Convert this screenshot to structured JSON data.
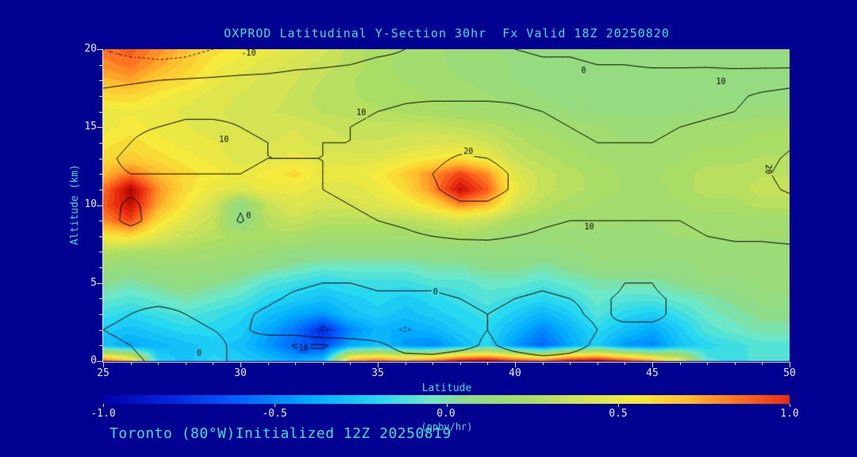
{
  "title": "OXPROD Latitudinal Y-Section 30hr  Fx Valid 18Z 20250820",
  "footer": "Toronto (80°W)Initialized 12Z 20250819",
  "axes": {
    "x_label": "Latitude",
    "y_label": "Altitude (km)",
    "x_tick_labels": [
      "25",
      "30",
      "35",
      "40",
      "45",
      "50"
    ],
    "y_tick_labels": [
      "20",
      "15",
      "10",
      "5",
      "0"
    ]
  },
  "colorbar": {
    "unit": "(ppbv/hr)",
    "min": -1.0,
    "max": 1.0,
    "tick_labels": [
      "-1.0",
      "-0.5",
      "0.0",
      "0.5",
      "1.0"
    ]
  },
  "colors": {
    "background": "#000091",
    "text_title": "#3fe0d8",
    "text_ticks": "#e8e8fa",
    "axis": "#dcdcf5",
    "contour": "#000000"
  },
  "chart_data": {
    "type": "heatmap",
    "overlay": "contour",
    "title": "OXPROD Latitudinal Y-Section 30hr  Fx Valid 18Z 20250820",
    "xlabel": "Latitude",
    "ylabel": "Altitude (km)",
    "x_range": [
      25,
      50
    ],
    "y_range": [
      0,
      20
    ],
    "x_values": [
      25,
      26,
      27,
      28,
      29,
      30,
      31,
      32,
      33,
      34,
      35,
      36,
      37,
      38,
      39,
      40,
      41,
      42,
      43,
      44,
      45,
      46,
      47,
      48,
      49,
      50
    ],
    "y_values": [
      0,
      1,
      2,
      3,
      4,
      5,
      6,
      7,
      8,
      9,
      10,
      11,
      12,
      13,
      14,
      15,
      16,
      17,
      18,
      19,
      20
    ],
    "fill_units": "ppbv/hr",
    "fill_range": [
      -1.0,
      1.0
    ],
    "fill_grid": [
      [
        0.9,
        0.7,
        -0.2,
        -0.3,
        -0.2,
        -0.25,
        -0.3,
        -0.4,
        -0.3,
        0.8,
        0.9,
        0.8,
        0.9,
        1.1,
        1.15,
        1.0,
        0.9,
        1.1,
        1.15,
        1.0,
        0.8,
        0.5,
        -0.1,
        -0.15,
        -0.1,
        -0.1
      ],
      [
        -0.3,
        -0.4,
        -0.35,
        -0.3,
        -0.25,
        -0.3,
        -0.45,
        -0.6,
        -0.7,
        -0.4,
        -0.3,
        -0.45,
        -0.5,
        -0.35,
        -0.2,
        -0.45,
        -0.6,
        -0.4,
        -0.25,
        -0.45,
        -0.5,
        -0.3,
        -0.2,
        -0.15,
        -0.1,
        -0.1
      ],
      [
        -0.25,
        -0.3,
        -0.25,
        -0.2,
        -0.2,
        -0.25,
        -0.4,
        -0.55,
        -0.8,
        -0.5,
        -0.35,
        -0.4,
        -0.35,
        -0.25,
        -0.2,
        -0.35,
        -0.5,
        -0.35,
        -0.2,
        -0.3,
        -0.4,
        -0.25,
        -0.1,
        -0.05,
        0.0,
        0.0
      ],
      [
        -0.15,
        -0.2,
        -0.15,
        -0.1,
        -0.15,
        -0.2,
        -0.3,
        -0.4,
        -0.45,
        -0.3,
        -0.25,
        -0.3,
        -0.25,
        -0.2,
        -0.15,
        -0.25,
        -0.35,
        -0.25,
        -0.1,
        -0.2,
        -0.25,
        -0.15,
        -0.05,
        0.0,
        0.05,
        0.05
      ],
      [
        -0.05,
        -0.1,
        -0.05,
        0.0,
        -0.05,
        -0.1,
        -0.2,
        -0.25,
        -0.3,
        -0.25,
        -0.2,
        -0.25,
        -0.2,
        -0.15,
        -0.1,
        -0.15,
        -0.2,
        -0.15,
        -0.05,
        -0.1,
        -0.1,
        -0.05,
        0.0,
        0.05,
        0.1,
        0.1
      ],
      [
        0.05,
        0.0,
        0.05,
        0.1,
        0.05,
        0.0,
        -0.1,
        -0.15,
        -0.2,
        -0.15,
        -0.15,
        -0.15,
        -0.1,
        -0.1,
        -0.05,
        -0.05,
        -0.1,
        -0.05,
        0.0,
        0.0,
        0.0,
        0.05,
        0.1,
        0.1,
        0.15,
        0.15
      ],
      [
        0.15,
        0.1,
        0.15,
        0.15,
        0.15,
        0.1,
        0.05,
        0.0,
        -0.05,
        -0.05,
        -0.05,
        -0.05,
        0.0,
        0.0,
        0.05,
        0.05,
        0.0,
        0.05,
        0.1,
        0.1,
        0.1,
        0.1,
        0.15,
        0.15,
        0.15,
        0.15
      ],
      [
        0.3,
        0.25,
        0.25,
        0.25,
        0.2,
        0.2,
        0.15,
        0.1,
        0.1,
        0.1,
        0.1,
        0.1,
        0.1,
        0.1,
        0.1,
        0.1,
        0.1,
        0.12,
        0.15,
        0.15,
        0.15,
        0.15,
        0.15,
        0.15,
        0.15,
        0.15
      ],
      [
        0.55,
        0.6,
        0.45,
        0.35,
        0.3,
        0.25,
        0.25,
        0.25,
        0.2,
        0.2,
        0.2,
        0.2,
        0.2,
        0.25,
        0.2,
        0.15,
        0.15,
        0.15,
        0.15,
        0.15,
        0.15,
        0.18,
        0.18,
        0.18,
        0.18,
        0.18
      ],
      [
        0.8,
        0.95,
        0.6,
        0.45,
        0.35,
        0.05,
        0.3,
        0.35,
        0.3,
        0.3,
        0.3,
        0.3,
        0.35,
        0.4,
        0.35,
        0.25,
        0.2,
        0.2,
        0.2,
        0.18,
        0.18,
        0.2,
        0.2,
        0.2,
        0.2,
        0.2
      ],
      [
        0.9,
        1.1,
        0.75,
        0.55,
        0.4,
        0.08,
        0.35,
        0.45,
        0.4,
        0.4,
        0.45,
        0.5,
        0.6,
        0.8,
        0.7,
        0.4,
        0.3,
        0.25,
        0.22,
        0.2,
        0.2,
        0.22,
        0.25,
        0.25,
        0.3,
        0.3
      ],
      [
        0.85,
        1.15,
        0.8,
        0.6,
        0.5,
        0.45,
        0.5,
        0.5,
        0.45,
        0.45,
        0.5,
        0.6,
        0.8,
        1.1,
        0.9,
        0.5,
        0.35,
        0.3,
        0.25,
        0.22,
        0.2,
        0.25,
        0.3,
        0.3,
        0.35,
        0.35
      ],
      [
        0.7,
        0.85,
        0.7,
        0.6,
        0.55,
        0.5,
        0.55,
        0.6,
        0.5,
        0.5,
        0.55,
        0.65,
        0.8,
        0.95,
        0.8,
        0.45,
        0.35,
        0.3,
        0.25,
        0.22,
        0.22,
        0.25,
        0.3,
        0.3,
        0.32,
        0.32
      ],
      [
        0.6,
        0.65,
        0.6,
        0.55,
        0.5,
        0.45,
        0.45,
        0.5,
        0.45,
        0.45,
        0.45,
        0.5,
        0.55,
        0.6,
        0.5,
        0.35,
        0.3,
        0.25,
        0.22,
        0.2,
        0.2,
        0.22,
        0.25,
        0.25,
        0.28,
        0.28
      ],
      [
        0.55,
        0.6,
        0.55,
        0.5,
        0.48,
        0.45,
        0.42,
        0.45,
        0.4,
        0.38,
        0.38,
        0.4,
        0.42,
        0.42,
        0.38,
        0.3,
        0.25,
        0.22,
        0.2,
        0.18,
        0.18,
        0.2,
        0.22,
        0.22,
        0.25,
        0.25
      ],
      [
        0.5,
        0.55,
        0.5,
        0.48,
        0.45,
        0.42,
        0.4,
        0.42,
        0.38,
        0.35,
        0.35,
        0.35,
        0.35,
        0.32,
        0.3,
        0.25,
        0.22,
        0.2,
        0.18,
        0.16,
        0.16,
        0.18,
        0.2,
        0.2,
        0.22,
        0.22
      ],
      [
        0.5,
        0.52,
        0.5,
        0.46,
        0.44,
        0.4,
        0.38,
        0.36,
        0.32,
        0.3,
        0.28,
        0.26,
        0.25,
        0.22,
        0.2,
        0.18,
        0.15,
        0.13,
        0.12,
        0.11,
        0.1,
        0.12,
        0.13,
        0.14,
        0.15,
        0.15
      ],
      [
        0.6,
        0.62,
        0.55,
        0.5,
        0.45,
        0.42,
        0.4,
        0.36,
        0.3,
        0.28,
        0.26,
        0.24,
        0.22,
        0.2,
        0.18,
        0.15,
        0.12,
        0.1,
        0.1,
        0.1,
        0.1,
        0.1,
        0.1,
        0.1,
        0.1,
        0.1
      ],
      [
        0.7,
        0.75,
        0.65,
        0.6,
        0.5,
        0.45,
        0.4,
        0.38,
        0.32,
        0.28,
        0.25,
        0.22,
        0.2,
        0.18,
        0.15,
        0.12,
        0.1,
        0.1,
        0.1,
        0.1,
        0.1,
        0.1,
        0.1,
        0.1,
        0.1,
        0.1
      ],
      [
        0.8,
        0.85,
        0.75,
        0.65,
        0.55,
        0.5,
        0.45,
        0.4,
        0.35,
        0.3,
        0.25,
        0.2,
        0.2,
        0.15,
        0.15,
        0.12,
        0.1,
        0.1,
        0.1,
        0.1,
        0.1,
        0.08,
        0.08,
        0.08,
        0.08,
        0.08
      ],
      [
        0.85,
        0.9,
        0.8,
        0.7,
        0.6,
        0.55,
        0.5,
        0.45,
        0.4,
        0.3,
        0.25,
        0.2,
        0.2,
        0.15,
        0.15,
        0.1,
        0.1,
        0.1,
        0.1,
        0.1,
        0.1,
        0.1,
        0.1,
        0.1,
        0.1,
        0.1
      ]
    ],
    "contour_levels": [
      {
        "value": -10,
        "style": "dotted"
      },
      {
        "value": 0,
        "style": "solid"
      },
      {
        "value": 10,
        "style": "solid"
      },
      {
        "value": 20,
        "style": "solid"
      }
    ],
    "contour_grid": [
      [
        2,
        1,
        -1,
        -2,
        -1,
        1,
        3,
        5,
        6,
        5,
        4,
        3,
        3,
        4,
        4,
        3,
        2,
        2,
        3,
        3,
        2,
        1,
        1,
        0,
        0,
        0
      ],
      [
        1,
        0,
        -2,
        -2,
        -1,
        1,
        4,
        11,
        11,
        6,
        2,
        -3,
        -4,
        -2,
        1,
        -2,
        -4,
        -2,
        1,
        2,
        2,
        1,
        1,
        0,
        0,
        0
      ],
      [
        0,
        -1,
        -2,
        -1,
        0,
        1,
        -2,
        -6,
        -11,
        -8,
        -6,
        -11,
        -6,
        -2,
        0,
        -3,
        -6,
        -3,
        0,
        1,
        1,
        1,
        1,
        1,
        1,
        1
      ],
      [
        1,
        0,
        -1,
        0,
        1,
        1,
        -1,
        -4,
        -6,
        -5,
        -4,
        -5,
        -3,
        -1,
        0,
        -1,
        -3,
        -1,
        1,
        -1,
        -1,
        1,
        2,
        2,
        2,
        2
      ],
      [
        2,
        1,
        1,
        1,
        2,
        2,
        1,
        -1,
        -2,
        -2,
        -1,
        -1,
        -1,
        0,
        1,
        0,
        -1,
        0,
        1,
        -1,
        -1,
        1,
        3,
        3,
        3,
        3
      ],
      [
        3,
        3,
        3,
        3,
        3,
        3,
        2,
        1,
        0,
        0,
        1,
        1,
        1,
        2,
        2,
        2,
        1,
        2,
        3,
        0,
        0,
        3,
        4,
        4,
        4,
        4
      ],
      [
        4,
        4,
        4,
        4,
        4,
        4,
        3,
        3,
        2,
        2,
        3,
        3,
        3,
        4,
        4,
        4,
        4,
        4,
        5,
        5,
        5,
        5,
        6,
        6,
        6,
        6
      ],
      [
        5,
        5,
        5,
        5,
        5,
        5,
        5,
        4,
        4,
        4,
        5,
        5,
        6,
        6,
        7,
        7,
        6,
        6,
        7,
        7,
        7,
        7,
        7,
        8,
        8,
        8
      ],
      [
        6,
        6,
        6,
        6,
        6,
        6,
        6,
        6,
        6,
        7,
        8,
        9,
        10,
        11,
        11,
        10,
        9,
        8,
        9,
        9,
        9,
        9,
        10,
        11,
        11,
        12
      ],
      [
        7,
        12,
        7,
        7,
        7,
        -1,
        7,
        7,
        8,
        9,
        10,
        11,
        13,
        15,
        15,
        13,
        11,
        10,
        10,
        10,
        10,
        10,
        11,
        12,
        13,
        14
      ],
      [
        8,
        11,
        8,
        8,
        8,
        1,
        8,
        8,
        9,
        10,
        11,
        13,
        16,
        19,
        19,
        16,
        13,
        11,
        10,
        10,
        10,
        11,
        12,
        13,
        15,
        17
      ],
      [
        8,
        9,
        9,
        9,
        9,
        9,
        9,
        9,
        10,
        11,
        12,
        15,
        19,
        23,
        23,
        19,
        15,
        12,
        11,
        11,
        11,
        11,
        13,
        15,
        18,
        21
      ],
      [
        9,
        10,
        10,
        10,
        10,
        10,
        9,
        9,
        10,
        11,
        13,
        16,
        20,
        24,
        23,
        19,
        15,
        12,
        11,
        11,
        11,
        12,
        14,
        16,
        19,
        22
      ],
      [
        9,
        11,
        12,
        12,
        12,
        11,
        10,
        10,
        10,
        11,
        12,
        15,
        18,
        21,
        20,
        17,
        14,
        12,
        11,
        11,
        11,
        12,
        13,
        15,
        18,
        21
      ],
      [
        8,
        10,
        12,
        13,
        12,
        11,
        10,
        9,
        10,
        10,
        11,
        13,
        15,
        17,
        16,
        14,
        12,
        11,
        10,
        10,
        10,
        11,
        12,
        13,
        16,
        19
      ],
      [
        7,
        9,
        10,
        11,
        11,
        10,
        9,
        9,
        9,
        10,
        11,
        12,
        13,
        14,
        13,
        12,
        11,
        10,
        9,
        9,
        9,
        10,
        11,
        12,
        14,
        16
      ],
      [
        5,
        7,
        8,
        9,
        9,
        9,
        8,
        8,
        8,
        9,
        10,
        11,
        12,
        12,
        12,
        11,
        10,
        9,
        8,
        8,
        8,
        8,
        9,
        10,
        12,
        13
      ],
      [
        2,
        3,
        4,
        5,
        6,
        6,
        6,
        6,
        7,
        7,
        8,
        9,
        9,
        9,
        9,
        9,
        8,
        7,
        6,
        6,
        6,
        6,
        7,
        9,
        11,
        12
      ],
      [
        -2,
        -1,
        0,
        1,
        2,
        3,
        3,
        4,
        4,
        5,
        5,
        6,
        6,
        6,
        6,
        6,
        5,
        5,
        4,
        4,
        4,
        4,
        5,
        6,
        7,
        8
      ],
      [
        -7,
        -8,
        -9,
        -9,
        -8,
        -6,
        -4,
        -2,
        -1,
        0,
        1,
        1,
        2,
        2,
        2,
        2,
        1,
        1,
        0,
        0,
        -1,
        -1,
        -1,
        -2,
        -2,
        -2
      ],
      [
        -10,
        -12,
        -12,
        -11,
        -10,
        -9,
        -7,
        -5,
        -3,
        -2,
        -1,
        0,
        0,
        0,
        0,
        0,
        -1,
        -1,
        -2,
        -2,
        -2,
        -3,
        -3,
        -3,
        -4,
        -4
      ]
    ],
    "contour_labels": [
      {
        "text": "-10",
        "lat": 30.3,
        "alt": 19.7,
        "rot": 0
      },
      {
        "text": "0",
        "lat": 42.5,
        "alt": 18.6,
        "rot": 0
      },
      {
        "text": "10",
        "lat": 47.5,
        "alt": 17.9,
        "rot": 0
      },
      {
        "text": "10",
        "lat": 29.4,
        "alt": 14.2,
        "rot": 0
      },
      {
        "text": "10",
        "lat": 34.4,
        "alt": 15.9,
        "rot": 0
      },
      {
        "text": "20",
        "lat": 38.3,
        "alt": 13.4,
        "rot": 0
      },
      {
        "text": "20",
        "lat": 49.2,
        "alt": 12.3,
        "rot": 90
      },
      {
        "text": "0",
        "lat": 30.3,
        "alt": 9.3,
        "rot": 0
      },
      {
        "text": "10",
        "lat": 42.7,
        "alt": 8.6,
        "rot": 0
      },
      {
        "text": "0",
        "lat": 37.1,
        "alt": 4.4,
        "rot": 0
      },
      {
        "text": "0",
        "lat": 28.5,
        "alt": 0.5,
        "rot": 0
      },
      {
        "text": "10",
        "lat": 32.3,
        "alt": 0.8,
        "rot": 0
      }
    ],
    "colormap": [
      [
        -1.3,
        "#00004d"
      ],
      [
        -1.0,
        "#0000a8"
      ],
      [
        -0.8,
        "#0028e0"
      ],
      [
        -0.6,
        "#0064ff"
      ],
      [
        -0.4,
        "#00aaff"
      ],
      [
        -0.2,
        "#26d8f0"
      ],
      [
        -0.05,
        "#6ce8c8"
      ],
      [
        0.05,
        "#8edc8a"
      ],
      [
        0.25,
        "#aadd66"
      ],
      [
        0.4,
        "#d4e455"
      ],
      [
        0.55,
        "#f6ea3c"
      ],
      [
        0.7,
        "#ffbe2e"
      ],
      [
        0.85,
        "#ff7420"
      ],
      [
        1.0,
        "#ea2c10"
      ],
      [
        1.15,
        "#ab0400"
      ],
      [
        1.3,
        "#6e0000"
      ]
    ]
  }
}
